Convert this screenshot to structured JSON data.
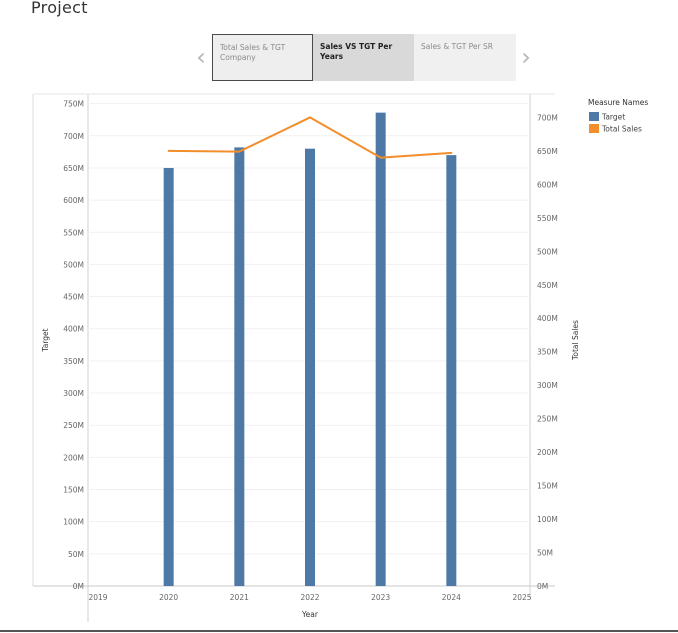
{
  "page": {
    "title": "Project"
  },
  "story": {
    "prev_icon": "chevron-left-icon",
    "next_icon": "chevron-right-icon",
    "tabs": [
      {
        "label": "Total Sales & TGT Company"
      },
      {
        "label": "Sales VS TGT Per Years"
      },
      {
        "label": "Sales & TGT Per SR"
      }
    ],
    "active_index": 1
  },
  "chart_data": {
    "type": "bar",
    "title": "",
    "x": [
      2020,
      2021,
      2022,
      2023,
      2024
    ],
    "xlabel": "Year",
    "xlim": [
      2019,
      2025
    ],
    "x_ticks": [
      "2019",
      "2020",
      "2021",
      "2022",
      "2023",
      "2024",
      "2025"
    ],
    "series": [
      {
        "name": "Target",
        "type": "bar",
        "axis": "left",
        "color": "#4e79a7",
        "values": [
          650,
          682,
          680,
          736,
          670
        ]
      },
      {
        "name": "Total Sales",
        "type": "line",
        "axis": "right",
        "color": "#f28e2b",
        "values": [
          650,
          649,
          700,
          640,
          647
        ]
      }
    ],
    "y_left": {
      "label": "Target",
      "unit": "M",
      "ylim": [
        0,
        765
      ],
      "ticks": [
        0,
        50,
        100,
        150,
        200,
        250,
        300,
        350,
        400,
        450,
        500,
        550,
        600,
        650,
        700,
        750
      ]
    },
    "y_right": {
      "label": "Total Sales",
      "unit": "M",
      "ylim": [
        0,
        735
      ],
      "ticks": [
        0,
        50,
        100,
        150,
        200,
        250,
        300,
        350,
        400,
        450,
        500,
        550,
        600,
        650,
        700
      ]
    },
    "legend": {
      "title": "Measure Names",
      "placement": "right",
      "items": [
        {
          "label": "Target",
          "color": "#4e79a7"
        },
        {
          "label": "Total Sales",
          "color": "#f28e2b"
        }
      ]
    },
    "grid": true
  }
}
